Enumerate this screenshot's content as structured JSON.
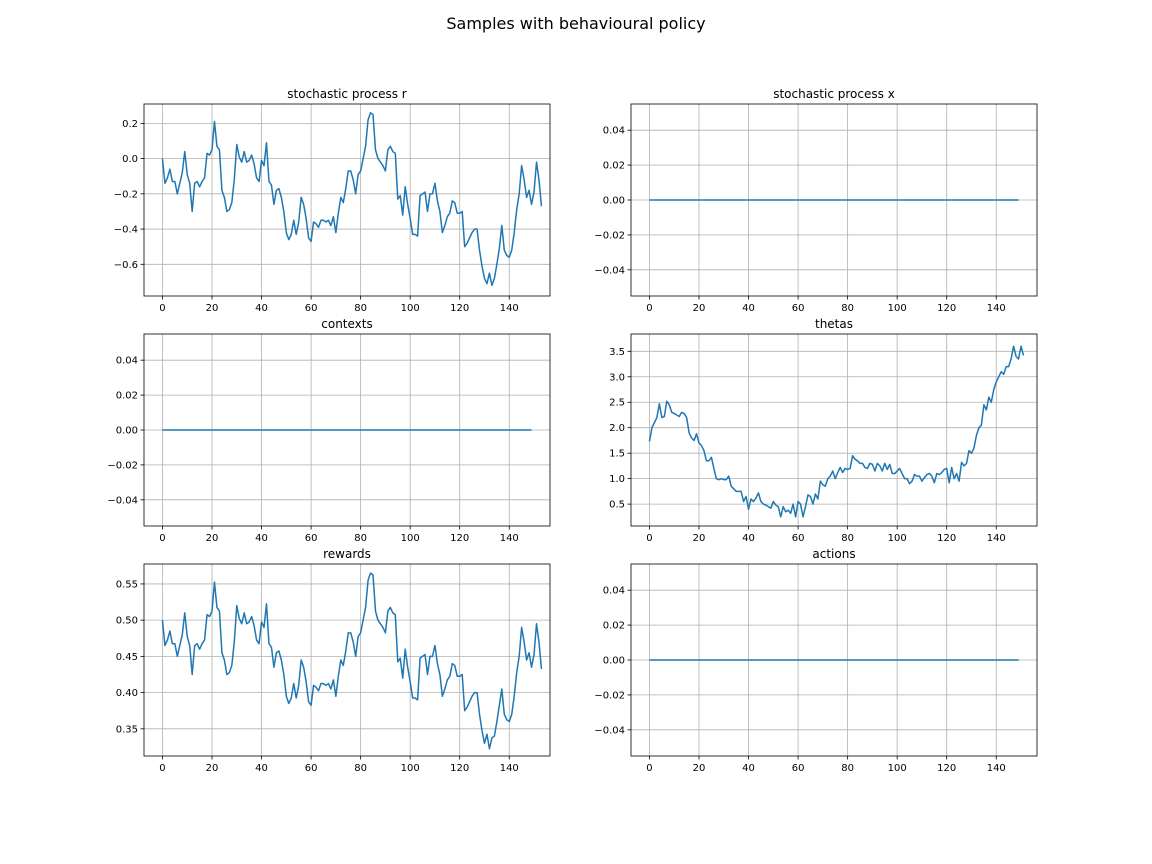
{
  "figure": {
    "suptitle": "Samples with behavioural policy"
  },
  "colors": {
    "line": "#1f77b4",
    "grid": "#b0b0b0",
    "axis": "#000000"
  },
  "chart_data": [
    {
      "type": "line",
      "title": "stochastic process r",
      "grid": true,
      "xlim": [
        -7.45,
        156.45
      ],
      "ylim": [
        -0.78,
        0.31
      ],
      "xticks": [
        0,
        20,
        40,
        60,
        80,
        100,
        120,
        140
      ],
      "yticks": [
        0.2,
        0.0,
        -0.2,
        -0.4,
        -0.6
      ],
      "ytick_labels": [
        "0.2",
        "0.0",
        "−0.2",
        "−0.4",
        "−0.6"
      ],
      "x_start": 0,
      "y": [
        0.0,
        -0.14,
        -0.11,
        -0.06,
        -0.13,
        -0.13,
        -0.2,
        -0.14,
        -0.08,
        0.04,
        -0.09,
        -0.14,
        -0.3,
        -0.14,
        -0.13,
        -0.16,
        -0.13,
        -0.11,
        0.03,
        0.02,
        0.05,
        0.21,
        0.07,
        0.05,
        -0.18,
        -0.22,
        -0.3,
        -0.29,
        -0.25,
        -0.12,
        0.08,
        0.01,
        -0.02,
        0.04,
        -0.02,
        -0.01,
        0.02,
        -0.03,
        -0.11,
        -0.13,
        -0.01,
        -0.04,
        0.09,
        -0.13,
        -0.15,
        -0.26,
        -0.18,
        -0.17,
        -0.22,
        -0.3,
        -0.42,
        -0.46,
        -0.43,
        -0.35,
        -0.43,
        -0.36,
        -0.22,
        -0.26,
        -0.34,
        -0.45,
        -0.47,
        -0.36,
        -0.37,
        -0.39,
        -0.35,
        -0.35,
        -0.36,
        -0.35,
        -0.38,
        -0.33,
        -0.42,
        -0.31,
        -0.22,
        -0.25,
        -0.17,
        -0.07,
        -0.07,
        -0.12,
        -0.2,
        -0.09,
        -0.07,
        -0.0,
        0.07,
        0.22,
        0.26,
        0.25,
        0.05,
        0.0,
        -0.02,
        -0.04,
        -0.07,
        0.05,
        0.07,
        0.04,
        0.03,
        -0.23,
        -0.21,
        -0.32,
        -0.16,
        -0.26,
        -0.34,
        -0.43,
        -0.43,
        -0.44,
        -0.21,
        -0.2,
        -0.19,
        -0.3,
        -0.2,
        -0.2,
        -0.14,
        -0.24,
        -0.3,
        -0.42,
        -0.38,
        -0.33,
        -0.31,
        -0.24,
        -0.25,
        -0.31,
        -0.31,
        -0.3,
        -0.5,
        -0.48,
        -0.45,
        -0.42,
        -0.4,
        -0.4,
        -0.52,
        -0.61,
        -0.68,
        -0.71,
        -0.65,
        -0.72,
        -0.68,
        -0.6,
        -0.51,
        -0.38,
        -0.52,
        -0.55,
        -0.56,
        -0.52,
        -0.42,
        -0.29,
        -0.2,
        -0.04,
        -0.12,
        -0.22,
        -0.18,
        -0.26,
        -0.19,
        -0.02,
        -0.12,
        -0.27
      ]
    },
    {
      "type": "line",
      "title": "stochastic process x",
      "grid": true,
      "xlim": [
        -7.45,
        156.45
      ],
      "ylim": [
        -0.055,
        0.055
      ],
      "xticks": [
        0,
        20,
        40,
        60,
        80,
        100,
        120,
        140
      ],
      "yticks": [
        0.04,
        0.02,
        0.0,
        -0.02,
        -0.04
      ],
      "ytick_labels": [
        "0.04",
        "0.02",
        "0.00",
        "−0.02",
        "−0.04"
      ],
      "x_start": 0,
      "constant": {
        "value": 0.0,
        "count": 150
      }
    },
    {
      "type": "line",
      "title": "contexts",
      "grid": true,
      "xlim": [
        -7.45,
        156.45
      ],
      "ylim": [
        -0.055,
        0.055
      ],
      "xticks": [
        0,
        20,
        40,
        60,
        80,
        100,
        120,
        140
      ],
      "yticks": [
        0.04,
        0.02,
        0.0,
        -0.02,
        -0.04
      ],
      "ytick_labels": [
        "0.04",
        "0.02",
        "0.00",
        "−0.02",
        "−0.04"
      ],
      "x_start": 0,
      "constant": {
        "value": 0.0,
        "count": 150
      }
    },
    {
      "type": "line",
      "title": "thetas",
      "grid": true,
      "xlim": [
        -7.45,
        156.45
      ],
      "ylim": [
        0.07,
        3.84
      ],
      "xticks": [
        0,
        20,
        40,
        60,
        80,
        100,
        120,
        140
      ],
      "yticks": [
        3.5,
        3.0,
        2.5,
        2.0,
        1.5,
        1.0,
        0.5
      ],
      "ytick_labels": [
        "3.5",
        "3.0",
        "2.5",
        "2.0",
        "1.5",
        "1.0",
        "0.5"
      ],
      "x_start": 0,
      "y": [
        1.73,
        2.0,
        2.1,
        2.2,
        2.47,
        2.2,
        2.22,
        2.52,
        2.45,
        2.3,
        2.28,
        2.25,
        2.22,
        2.3,
        2.28,
        2.2,
        1.9,
        1.8,
        1.75,
        1.88,
        1.7,
        1.65,
        1.55,
        1.35,
        1.35,
        1.42,
        1.2,
        1.0,
        0.98,
        1.0,
        0.98,
        0.98,
        1.05,
        0.85,
        0.8,
        0.75,
        0.75,
        0.75,
        0.55,
        0.65,
        0.4,
        0.6,
        0.55,
        0.62,
        0.72,
        0.55,
        0.5,
        0.48,
        0.45,
        0.42,
        0.55,
        0.48,
        0.45,
        0.25,
        0.45,
        0.35,
        0.38,
        0.32,
        0.5,
        0.25,
        0.55,
        0.5,
        0.25,
        0.45,
        0.68,
        0.65,
        0.5,
        0.7,
        0.6,
        0.95,
        0.88,
        0.85,
        1.0,
        1.05,
        1.15,
        1.0,
        1.12,
        1.22,
        1.12,
        1.2,
        1.18,
        1.2,
        1.45,
        1.38,
        1.35,
        1.3,
        1.3,
        1.22,
        1.2,
        1.3,
        1.28,
        1.15,
        1.3,
        1.25,
        1.15,
        1.3,
        1.18,
        1.28,
        1.1,
        1.1,
        1.15,
        1.2,
        1.1,
        1.0,
        1.0,
        0.9,
        0.95,
        1.08,
        1.05,
        1.05,
        0.95,
        1.02,
        1.08,
        1.1,
        1.05,
        0.92,
        1.1,
        1.08,
        1.12,
        1.18,
        1.2,
        0.92,
        1.22,
        1.0,
        1.1,
        0.95,
        1.32,
        1.25,
        1.3,
        1.55,
        1.5,
        1.6,
        1.85,
        2.0,
        2.05,
        2.45,
        2.35,
        2.6,
        2.5,
        2.75,
        2.9,
        3.0,
        3.1,
        3.05,
        3.2,
        3.2,
        3.35,
        3.6,
        3.4,
        3.35,
        3.6,
        3.42
      ]
    },
    {
      "type": "line",
      "title": "rewards",
      "grid": true,
      "xlim": [
        -7.45,
        156.45
      ],
      "ylim": [
        0.3125,
        0.5775
      ],
      "xticks": [
        0,
        20,
        40,
        60,
        80,
        100,
        120,
        140
      ],
      "yticks": [
        0.55,
        0.5,
        0.45,
        0.4,
        0.35
      ],
      "ytick_labels": [
        "0.55",
        "0.50",
        "0.45",
        "0.40",
        "0.35"
      ],
      "x_start": 0,
      "y": [
        0.5,
        0.465,
        0.4725,
        0.485,
        0.4675,
        0.4675,
        0.45,
        0.465,
        0.48,
        0.51,
        0.4775,
        0.465,
        0.425,
        0.465,
        0.4675,
        0.46,
        0.4675,
        0.4725,
        0.5075,
        0.505,
        0.5125,
        0.5525,
        0.5175,
        0.5125,
        0.455,
        0.445,
        0.425,
        0.4275,
        0.4375,
        0.47,
        0.52,
        0.5025,
        0.495,
        0.51,
        0.495,
        0.4975,
        0.505,
        0.4925,
        0.4725,
        0.4675,
        0.4975,
        0.49,
        0.5225,
        0.4675,
        0.4625,
        0.435,
        0.455,
        0.4575,
        0.445,
        0.425,
        0.395,
        0.385,
        0.3925,
        0.4125,
        0.3925,
        0.41,
        0.445,
        0.435,
        0.415,
        0.3875,
        0.3825,
        0.41,
        0.4075,
        0.4025,
        0.4125,
        0.4125,
        0.41,
        0.4125,
        0.405,
        0.4175,
        0.395,
        0.4225,
        0.445,
        0.4375,
        0.4575,
        0.4825,
        0.4825,
        0.47,
        0.45,
        0.4775,
        0.4825,
        0.5,
        0.5175,
        0.555,
        0.565,
        0.5625,
        0.5125,
        0.5,
        0.495,
        0.49,
        0.4825,
        0.5125,
        0.5175,
        0.51,
        0.5075,
        0.4425,
        0.4475,
        0.42,
        0.46,
        0.435,
        0.415,
        0.3925,
        0.3925,
        0.39,
        0.4475,
        0.45,
        0.4525,
        0.425,
        0.45,
        0.45,
        0.465,
        0.44,
        0.425,
        0.395,
        0.405,
        0.4175,
        0.4225,
        0.44,
        0.4375,
        0.4225,
        0.4225,
        0.425,
        0.375,
        0.38,
        0.3875,
        0.395,
        0.4,
        0.4,
        0.37,
        0.3475,
        0.33,
        0.3425,
        0.3225,
        0.3375,
        0.34,
        0.36,
        0.3825,
        0.405,
        0.37,
        0.3625,
        0.36,
        0.37,
        0.395,
        0.4275,
        0.45,
        0.49,
        0.47,
        0.445,
        0.455,
        0.435,
        0.4525,
        0.495,
        0.47,
        0.4325
      ]
    },
    {
      "type": "line",
      "title": "actions",
      "grid": true,
      "xlim": [
        -7.45,
        156.45
      ],
      "ylim": [
        -0.055,
        0.055
      ],
      "xticks": [
        0,
        20,
        40,
        60,
        80,
        100,
        120,
        140
      ],
      "yticks": [
        0.04,
        0.02,
        0.0,
        -0.02,
        -0.04
      ],
      "ytick_labels": [
        "0.04",
        "0.02",
        "0.00",
        "−0.02",
        "−0.04"
      ],
      "x_start": 0,
      "constant": {
        "value": 0.0,
        "count": 150
      }
    }
  ]
}
